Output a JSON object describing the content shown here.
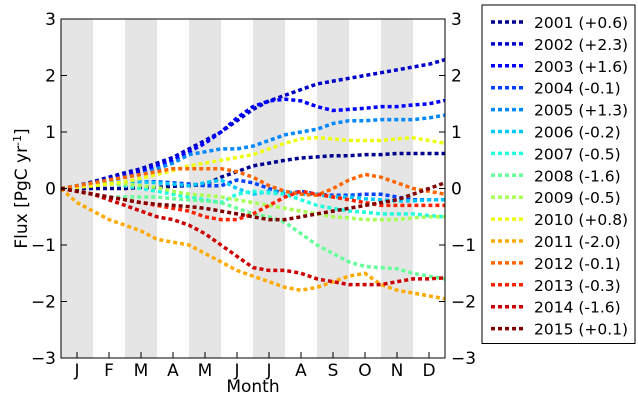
{
  "chart_data": {
    "type": "line",
    "xlabel": "Month",
    "ylabel_main": "Flux [PgC yr",
    "ylabel_sup": "-1",
    "ylabel_tail": "]",
    "ylim": [
      -3,
      3
    ],
    "yticks": [
      -3,
      -2,
      -1,
      0,
      1,
      2,
      3
    ],
    "ytick_labels": [
      "−3",
      "−2",
      "−1",
      "0",
      "1",
      "2",
      "3"
    ],
    "xlim": [
      0,
      12
    ],
    "x": [
      0,
      0.5,
      1,
      1.5,
      2,
      2.5,
      3,
      3.5,
      4,
      4.5,
      5,
      5.5,
      6,
      6.5,
      7,
      7.5,
      8,
      8.5,
      9,
      9.5,
      10,
      10.5,
      11,
      11.5,
      12
    ],
    "month_labels": [
      "J",
      "F",
      "M",
      "A",
      "M",
      "J",
      "J",
      "A",
      "S",
      "O",
      "N",
      "D"
    ],
    "shaded_bands": [
      [
        0,
        1
      ],
      [
        2,
        3
      ],
      [
        4,
        5
      ],
      [
        6,
        7
      ],
      [
        8,
        9
      ],
      [
        10,
        11
      ]
    ],
    "grid": false,
    "legend_position": "outside-right",
    "series": [
      {
        "name": "2001 (+0.6)",
        "color": "#00008f",
        "values": [
          0,
          0,
          0,
          0,
          0,
          0.02,
          0.02,
          0.04,
          0.05,
          0.07,
          0.2,
          0.3,
          0.4,
          0.45,
          0.5,
          0.54,
          0.56,
          0.58,
          0.58,
          0.6,
          0.6,
          0.62,
          0.62,
          0.62,
          0.62
        ]
      },
      {
        "name": "2002 (+2.3)",
        "color": "#0000c8",
        "values": [
          0,
          0.05,
          0.12,
          0.2,
          0.28,
          0.35,
          0.45,
          0.55,
          0.7,
          0.85,
          1.0,
          1.2,
          1.4,
          1.55,
          1.65,
          1.75,
          1.85,
          1.9,
          1.95,
          2.0,
          2.05,
          2.1,
          2.15,
          2.2,
          2.28
        ]
      },
      {
        "name": "2003 (+1.6)",
        "color": "#0000ff",
        "values": [
          0,
          0.03,
          0.08,
          0.15,
          0.22,
          0.3,
          0.4,
          0.5,
          0.65,
          0.8,
          1.0,
          1.25,
          1.45,
          1.55,
          1.58,
          1.55,
          1.45,
          1.38,
          1.4,
          1.42,
          1.45,
          1.45,
          1.48,
          1.5,
          1.56
        ]
      },
      {
        "name": "2004 (-0.1)",
        "color": "#0040ff",
        "values": [
          0,
          0.04,
          0.08,
          0.1,
          0.12,
          0.12,
          0.12,
          0.1,
          0.08,
          0.05,
          0.05,
          0.15,
          0.1,
          0.0,
          -0.1,
          -0.05,
          -0.1,
          -0.12,
          -0.12,
          -0.1,
          -0.1,
          -0.15,
          -0.2,
          -0.2,
          -0.2
        ]
      },
      {
        "name": "2005 (+1.3)",
        "color": "#0088ff",
        "values": [
          0,
          0.05,
          0.1,
          0.15,
          0.2,
          0.25,
          0.35,
          0.45,
          0.6,
          0.65,
          0.7,
          0.7,
          0.75,
          0.85,
          0.95,
          1.0,
          1.05,
          1.15,
          1.2,
          1.2,
          1.22,
          1.22,
          1.22,
          1.25,
          1.3
        ]
      },
      {
        "name": "2006 (-0.2)",
        "color": "#00c8ff",
        "values": [
          0,
          0.04,
          0.08,
          0.1,
          0.12,
          0.12,
          0.1,
          0.08,
          0.05,
          0.1,
          0.15,
          0.0,
          -0.1,
          -0.05,
          -0.05,
          -0.1,
          -0.1,
          -0.15,
          -0.15,
          -0.18,
          -0.2,
          -0.22,
          -0.22,
          -0.2,
          -0.2
        ]
      },
      {
        "name": "2007 (-0.5)",
        "color": "#22ffdd",
        "values": [
          0,
          0.05,
          0.08,
          0.1,
          0.05,
          0.0,
          -0.05,
          -0.1,
          -0.15,
          -0.2,
          -0.25,
          -0.1,
          -0.05,
          -0.08,
          -0.1,
          -0.2,
          -0.3,
          -0.35,
          -0.4,
          -0.42,
          -0.45,
          -0.45,
          -0.45,
          -0.48,
          -0.5
        ]
      },
      {
        "name": "2008 (-1.6)",
        "color": "#66ff99",
        "values": [
          0,
          -0.05,
          -0.1,
          -0.15,
          -0.15,
          -0.15,
          -0.15,
          -0.18,
          -0.2,
          -0.22,
          -0.25,
          -0.35,
          -0.45,
          -0.5,
          -0.6,
          -0.8,
          -1.0,
          -1.15,
          -1.3,
          -1.38,
          -1.4,
          -1.42,
          -1.5,
          -1.55,
          -1.6
        ]
      },
      {
        "name": "2009 (-0.5)",
        "color": "#aaff55",
        "values": [
          0,
          0.03,
          0.05,
          0.08,
          0.08,
          0.05,
          0.02,
          -0.05,
          -0.1,
          -0.12,
          -0.15,
          -0.2,
          -0.25,
          -0.3,
          -0.35,
          -0.4,
          -0.45,
          -0.5,
          -0.52,
          -0.55,
          -0.55,
          -0.55,
          -0.52,
          -0.5,
          -0.5
        ]
      },
      {
        "name": "2010 (+0.8)",
        "color": "#eeff11",
        "values": [
          0,
          0.02,
          0.05,
          0.08,
          0.12,
          0.18,
          0.25,
          0.32,
          0.4,
          0.45,
          0.5,
          0.55,
          0.6,
          0.7,
          0.8,
          0.88,
          0.9,
          0.88,
          0.85,
          0.85,
          0.85,
          0.88,
          0.9,
          0.85,
          0.8
        ]
      },
      {
        "name": "2011 (-2.0)",
        "color": "#ffaa00",
        "values": [
          0,
          -0.25,
          -0.4,
          -0.55,
          -0.65,
          -0.75,
          -0.9,
          -0.95,
          -1.0,
          -1.15,
          -1.3,
          -1.45,
          -1.55,
          -1.65,
          -1.75,
          -1.8,
          -1.75,
          -1.65,
          -1.55,
          -1.5,
          -1.7,
          -1.8,
          -1.85,
          -1.9,
          -1.95
        ]
      },
      {
        "name": "2012 (-0.1)",
        "color": "#ff6600",
        "values": [
          0,
          0.05,
          0.1,
          0.15,
          0.2,
          0.25,
          0.3,
          0.35,
          0.35,
          0.35,
          0.35,
          0.3,
          0.2,
          0.05,
          -0.05,
          -0.1,
          -0.12,
          0.0,
          0.15,
          0.25,
          0.2,
          0.1,
          0.0,
          -0.05,
          -0.1
        ]
      },
      {
        "name": "2013 (-0.3)",
        "color": "#ff2200",
        "values": [
          0,
          -0.05,
          -0.1,
          -0.15,
          -0.2,
          -0.25,
          -0.3,
          -0.35,
          -0.4,
          -0.5,
          -0.55,
          -0.55,
          -0.45,
          -0.3,
          -0.15,
          -0.05,
          -0.1,
          -0.15,
          -0.2,
          -0.25,
          -0.3,
          -0.3,
          -0.3,
          -0.3,
          -0.3
        ]
      },
      {
        "name": "2014 (-1.6)",
        "color": "#cc0000",
        "values": [
          0,
          -0.05,
          -0.1,
          -0.2,
          -0.3,
          -0.4,
          -0.5,
          -0.55,
          -0.65,
          -0.8,
          -1.0,
          -1.2,
          -1.4,
          -1.45,
          -1.45,
          -1.5,
          -1.6,
          -1.65,
          -1.7,
          -1.7,
          -1.7,
          -1.65,
          -1.6,
          -1.6,
          -1.58
        ]
      },
      {
        "name": "2015 (+0.1)",
        "color": "#800000",
        "values": [
          0,
          -0.05,
          -0.1,
          -0.15,
          -0.2,
          -0.25,
          -0.28,
          -0.3,
          -0.32,
          -0.35,
          -0.4,
          -0.45,
          -0.5,
          -0.55,
          -0.55,
          -0.5,
          -0.45,
          -0.4,
          -0.35,
          -0.3,
          -0.25,
          -0.2,
          -0.1,
          0.0,
          0.1
        ]
      }
    ]
  }
}
